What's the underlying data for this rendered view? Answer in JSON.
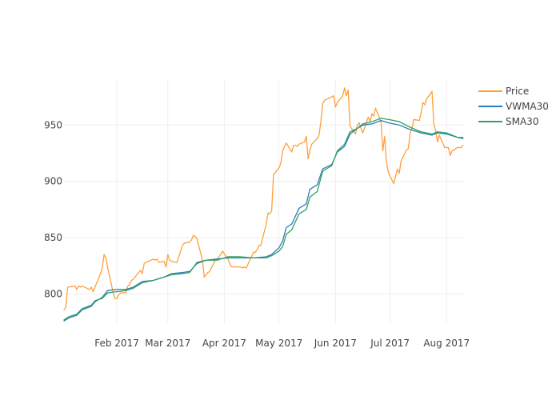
{
  "chart_data": {
    "type": "line",
    "title": "",
    "xlabel": "",
    "ylabel": "",
    "legend_position": "top-right",
    "grid": true,
    "x_range": [
      "2017-01-03",
      "2017-08-11"
    ],
    "ylim": [
      774,
      990
    ],
    "x_ticks": [
      {
        "date": "2017-02-01",
        "label": "Feb 2017"
      },
      {
        "date": "2017-03-01",
        "label": "Mar 2017"
      },
      {
        "date": "2017-04-01",
        "label": "Apr 2017"
      },
      {
        "date": "2017-05-01",
        "label": "May 2017"
      },
      {
        "date": "2017-06-01",
        "label": "Jun 2017"
      },
      {
        "date": "2017-07-01",
        "label": "Jul 2017"
      },
      {
        "date": "2017-08-01",
        "label": "Aug 2017"
      }
    ],
    "y_ticks": [
      800,
      850,
      900,
      950
    ],
    "colors": {
      "Price": "#ff9f3a",
      "VWMA30": "#2f7ab9",
      "SMA30": "#2ca25f"
    },
    "series": [
      {
        "name": "Price",
        "points": [
          [
            "2017-01-03",
            786
          ],
          [
            "2017-01-04",
            788
          ],
          [
            "2017-01-05",
            806
          ],
          [
            "2017-01-09",
            807
          ],
          [
            "2017-01-10",
            804
          ],
          [
            "2017-01-11",
            807
          ],
          [
            "2017-01-12",
            806
          ],
          [
            "2017-01-13",
            807
          ],
          [
            "2017-01-17",
            804
          ],
          [
            "2017-01-18",
            806
          ],
          [
            "2017-01-19",
            802
          ],
          [
            "2017-01-20",
            806
          ],
          [
            "2017-01-23",
            818
          ],
          [
            "2017-01-24",
            823
          ],
          [
            "2017-01-25",
            835
          ],
          [
            "2017-01-26",
            832
          ],
          [
            "2017-01-27",
            823
          ],
          [
            "2017-01-30",
            801
          ],
          [
            "2017-01-31",
            796
          ],
          [
            "2017-02-01",
            796
          ],
          [
            "2017-02-02",
            799
          ],
          [
            "2017-02-03",
            801
          ],
          [
            "2017-02-06",
            801
          ],
          [
            "2017-02-07",
            807
          ],
          [
            "2017-02-08",
            808
          ],
          [
            "2017-02-09",
            812
          ],
          [
            "2017-02-10",
            813
          ],
          [
            "2017-02-13",
            819
          ],
          [
            "2017-02-14",
            821
          ],
          [
            "2017-02-15",
            818
          ],
          [
            "2017-02-16",
            827
          ],
          [
            "2017-02-17",
            828
          ],
          [
            "2017-02-21",
            831
          ],
          [
            "2017-02-22",
            830
          ],
          [
            "2017-02-23",
            831
          ],
          [
            "2017-02-24",
            828
          ],
          [
            "2017-02-27",
            829
          ],
          [
            "2017-02-28",
            824
          ],
          [
            "2017-03-01",
            835
          ],
          [
            "2017-03-02",
            830
          ],
          [
            "2017-03-03",
            829
          ],
          [
            "2017-03-06",
            828
          ],
          [
            "2017-03-07",
            833
          ],
          [
            "2017-03-08",
            838
          ],
          [
            "2017-03-09",
            843
          ],
          [
            "2017-03-10",
            845
          ],
          [
            "2017-03-13",
            846
          ],
          [
            "2017-03-14",
            848
          ],
          [
            "2017-03-15",
            852
          ],
          [
            "2017-03-16",
            851
          ],
          [
            "2017-03-17",
            849
          ],
          [
            "2017-03-20",
            830
          ],
          [
            "2017-03-21",
            815
          ],
          [
            "2017-03-22",
            817
          ],
          [
            "2017-03-23",
            819
          ],
          [
            "2017-03-24",
            820
          ],
          [
            "2017-03-27",
            830
          ],
          [
            "2017-03-28",
            830
          ],
          [
            "2017-03-29",
            833
          ],
          [
            "2017-03-30",
            835
          ],
          [
            "2017-03-31",
            838
          ],
          [
            "2017-04-03",
            831
          ],
          [
            "2017-04-04",
            827
          ],
          [
            "2017-04-05",
            824
          ],
          [
            "2017-04-06",
            824
          ],
          [
            "2017-04-07",
            824
          ],
          [
            "2017-04-10",
            824
          ],
          [
            "2017-04-11",
            823
          ],
          [
            "2017-04-12",
            824
          ],
          [
            "2017-04-13",
            823
          ],
          [
            "2017-04-17",
            837
          ],
          [
            "2017-04-18",
            837
          ],
          [
            "2017-04-19",
            839
          ],
          [
            "2017-04-20",
            843
          ],
          [
            "2017-04-21",
            843
          ],
          [
            "2017-04-24",
            862
          ],
          [
            "2017-04-25",
            872
          ],
          [
            "2017-04-26",
            871
          ],
          [
            "2017-04-27",
            874
          ],
          [
            "2017-04-28",
            906
          ],
          [
            "2017-05-01",
            912
          ],
          [
            "2017-05-02",
            916
          ],
          [
            "2017-05-03",
            927
          ],
          [
            "2017-05-04",
            931
          ],
          [
            "2017-05-05",
            934
          ],
          [
            "2017-05-08",
            926
          ],
          [
            "2017-05-09",
            932
          ],
          [
            "2017-05-10",
            932
          ],
          [
            "2017-05-11",
            931
          ],
          [
            "2017-05-12",
            933
          ],
          [
            "2017-05-15",
            935
          ],
          [
            "2017-05-16",
            940
          ],
          [
            "2017-05-17",
            920
          ],
          [
            "2017-05-18",
            928
          ],
          [
            "2017-05-19",
            933
          ],
          [
            "2017-05-22",
            938
          ],
          [
            "2017-05-23",
            941
          ],
          [
            "2017-05-24",
            953
          ],
          [
            "2017-05-25",
            969
          ],
          [
            "2017-05-26",
            972
          ],
          [
            "2017-05-30",
            975
          ],
          [
            "2017-05-31",
            976
          ],
          [
            "2017-06-01",
            966
          ],
          [
            "2017-06-02",
            970
          ],
          [
            "2017-06-05",
            976
          ],
          [
            "2017-06-06",
            983
          ],
          [
            "2017-06-07",
            976
          ],
          [
            "2017-06-08",
            981
          ],
          [
            "2017-06-09",
            949
          ],
          [
            "2017-06-12",
            942
          ],
          [
            "2017-06-13",
            950
          ],
          [
            "2017-06-14",
            952
          ],
          [
            "2017-06-15",
            947
          ],
          [
            "2017-06-16",
            943
          ],
          [
            "2017-06-19",
            957
          ],
          [
            "2017-06-20",
            953
          ],
          [
            "2017-06-21",
            960
          ],
          [
            "2017-06-22",
            958
          ],
          [
            "2017-06-23",
            965
          ],
          [
            "2017-06-26",
            953
          ],
          [
            "2017-06-27",
            927
          ],
          [
            "2017-06-28",
            940
          ],
          [
            "2017-06-29",
            917
          ],
          [
            "2017-06-30",
            908
          ],
          [
            "2017-07-03",
            898
          ],
          [
            "2017-07-05",
            911
          ],
          [
            "2017-07-06",
            907
          ],
          [
            "2017-07-07",
            918
          ],
          [
            "2017-07-10",
            928
          ],
          [
            "2017-07-11",
            929
          ],
          [
            "2017-07-12",
            943
          ],
          [
            "2017-07-13",
            947
          ],
          [
            "2017-07-14",
            955
          ],
          [
            "2017-07-17",
            954
          ],
          [
            "2017-07-18",
            961
          ],
          [
            "2017-07-19",
            970
          ],
          [
            "2017-07-20",
            968
          ],
          [
            "2017-07-21",
            973
          ],
          [
            "2017-07-24",
            980
          ],
          [
            "2017-07-25",
            951
          ],
          [
            "2017-07-26",
            945
          ],
          [
            "2017-07-27",
            935
          ],
          [
            "2017-07-28",
            941
          ],
          [
            "2017-07-31",
            930
          ],
          [
            "2017-08-01",
            930
          ],
          [
            "2017-08-02",
            930
          ],
          [
            "2017-08-03",
            923
          ],
          [
            "2017-08-04",
            927
          ],
          [
            "2017-08-07",
            930
          ],
          [
            "2017-08-08",
            930
          ],
          [
            "2017-08-09",
            930
          ],
          [
            "2017-08-10",
            932
          ]
        ]
      },
      {
        "name": "VWMA30",
        "points": [
          [
            "2017-01-03",
            776
          ],
          [
            "2017-01-06",
            779
          ],
          [
            "2017-01-10",
            781
          ],
          [
            "2017-01-13",
            786
          ],
          [
            "2017-01-18",
            789
          ],
          [
            "2017-01-20",
            793
          ],
          [
            "2017-01-24",
            797
          ],
          [
            "2017-01-27",
            803
          ],
          [
            "2017-02-01",
            804
          ],
          [
            "2017-02-06",
            804
          ],
          [
            "2017-02-10",
            806
          ],
          [
            "2017-02-15",
            811
          ],
          [
            "2017-02-21",
            812
          ],
          [
            "2017-02-27",
            815
          ],
          [
            "2017-03-03",
            818
          ],
          [
            "2017-03-09",
            819
          ],
          [
            "2017-03-13",
            820
          ],
          [
            "2017-03-17",
            827
          ],
          [
            "2017-03-22",
            830
          ],
          [
            "2017-03-28",
            831
          ],
          [
            "2017-04-03",
            832
          ],
          [
            "2017-04-10",
            832
          ],
          [
            "2017-04-17",
            832
          ],
          [
            "2017-04-24",
            833
          ],
          [
            "2017-04-27",
            835
          ],
          [
            "2017-05-01",
            841
          ],
          [
            "2017-05-03",
            847
          ],
          [
            "2017-05-05",
            859
          ],
          [
            "2017-05-08",
            862
          ],
          [
            "2017-05-10",
            869
          ],
          [
            "2017-05-12",
            876
          ],
          [
            "2017-05-16",
            880
          ],
          [
            "2017-05-18",
            893
          ],
          [
            "2017-05-22",
            897
          ],
          [
            "2017-05-25",
            911
          ],
          [
            "2017-05-30",
            915
          ],
          [
            "2017-06-02",
            926
          ],
          [
            "2017-06-06",
            931
          ],
          [
            "2017-06-09",
            942
          ],
          [
            "2017-06-13",
            947
          ],
          [
            "2017-06-16",
            950
          ],
          [
            "2017-06-21",
            951
          ],
          [
            "2017-06-26",
            954
          ],
          [
            "2017-06-30",
            952
          ],
          [
            "2017-07-06",
            950
          ],
          [
            "2017-07-12",
            946
          ],
          [
            "2017-07-18",
            943
          ],
          [
            "2017-07-24",
            941
          ],
          [
            "2017-07-27",
            943
          ],
          [
            "2017-08-01",
            942
          ],
          [
            "2017-08-07",
            939
          ],
          [
            "2017-08-10",
            938
          ]
        ]
      },
      {
        "name": "SMA30",
        "points": [
          [
            "2017-01-03",
            777
          ],
          [
            "2017-01-06",
            780
          ],
          [
            "2017-01-10",
            782
          ],
          [
            "2017-01-13",
            787
          ],
          [
            "2017-01-18",
            790
          ],
          [
            "2017-01-20",
            794
          ],
          [
            "2017-01-24",
            796
          ],
          [
            "2017-01-27",
            801
          ],
          [
            "2017-02-01",
            802
          ],
          [
            "2017-02-06",
            803
          ],
          [
            "2017-02-10",
            805
          ],
          [
            "2017-02-15",
            810
          ],
          [
            "2017-02-21",
            812
          ],
          [
            "2017-02-27",
            815
          ],
          [
            "2017-03-03",
            817
          ],
          [
            "2017-03-09",
            818
          ],
          [
            "2017-03-13",
            819
          ],
          [
            "2017-03-17",
            828
          ],
          [
            "2017-03-22",
            830
          ],
          [
            "2017-03-28",
            830
          ],
          [
            "2017-04-03",
            833
          ],
          [
            "2017-04-10",
            833
          ],
          [
            "2017-04-17",
            832
          ],
          [
            "2017-04-24",
            832
          ],
          [
            "2017-04-27",
            834
          ],
          [
            "2017-05-01",
            838
          ],
          [
            "2017-05-03",
            842
          ],
          [
            "2017-05-05",
            853
          ],
          [
            "2017-05-08",
            857
          ],
          [
            "2017-05-10",
            864
          ],
          [
            "2017-05-12",
            871
          ],
          [
            "2017-05-16",
            875
          ],
          [
            "2017-05-18",
            886
          ],
          [
            "2017-05-22",
            891
          ],
          [
            "2017-05-25",
            909
          ],
          [
            "2017-05-30",
            914
          ],
          [
            "2017-06-02",
            927
          ],
          [
            "2017-06-06",
            933
          ],
          [
            "2017-06-09",
            944
          ],
          [
            "2017-06-13",
            947
          ],
          [
            "2017-06-16",
            951
          ],
          [
            "2017-06-21",
            953
          ],
          [
            "2017-06-26",
            956
          ],
          [
            "2017-06-30",
            955
          ],
          [
            "2017-07-06",
            953
          ],
          [
            "2017-07-12",
            948
          ],
          [
            "2017-07-18",
            944
          ],
          [
            "2017-07-24",
            942
          ],
          [
            "2017-07-27",
            944
          ],
          [
            "2017-08-01",
            943
          ],
          [
            "2017-08-07",
            939
          ],
          [
            "2017-08-10",
            939
          ]
        ]
      }
    ]
  }
}
